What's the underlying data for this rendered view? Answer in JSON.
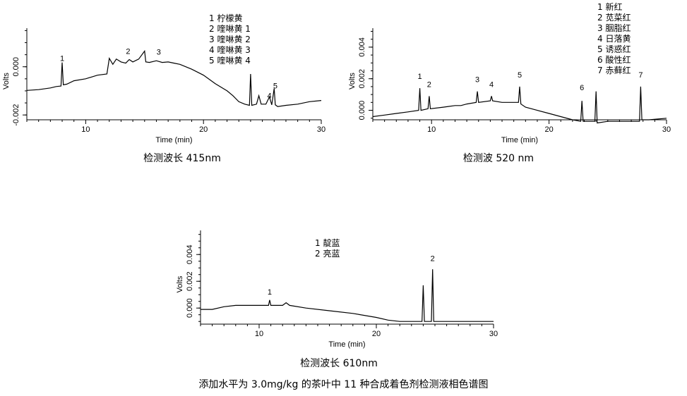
{
  "footer_caption": "添加水平为 3.0mg/kg 的茶叶中 11 种合成着色剂检测液相色谱图",
  "chart_data": [
    {
      "type": "line",
      "caption": "检测波长 415nm",
      "xlabel": "Time (min)",
      "ylabel": "Volts",
      "xlim": [
        5,
        30
      ],
      "ylim": [
        -0.0022,
        0.0016
      ],
      "xticks": [
        10,
        20,
        30
      ],
      "yticks": [
        -0.002,
        0.0
      ],
      "ytick_labels": [
        "-0.002",
        "0.000"
      ],
      "legend": [
        "1 柠檬黄",
        "2 喹啉黄 1",
        "3 喹啉黄 2",
        "4 喹啉黄 3",
        "5 喹啉黄 4"
      ],
      "peak_labels": [
        {
          "label": "1",
          "x": 8.0,
          "y": 0.00012
        },
        {
          "label": "2",
          "x": 13.6,
          "y": 0.00042
        },
        {
          "label": "3",
          "x": 16.2,
          "y": 0.00038
        },
        {
          "label": "4",
          "x": 25.6,
          "y": -0.00142
        },
        {
          "label": "5",
          "x": 26.1,
          "y": -0.00102
        }
      ],
      "series": [
        {
          "x": [
            5,
            6,
            7,
            7.5,
            7.9,
            8.0,
            8.1,
            8.4,
            9,
            10,
            11,
            11.8,
            12,
            12.3,
            12.6,
            13,
            13.4,
            13.7,
            14,
            14.5,
            15.0,
            15.1,
            15.4,
            16,
            16.5,
            17,
            17.5,
            18,
            19,
            20,
            21,
            22,
            22.5,
            23,
            23.5,
            23.9,
            24.0,
            24.1,
            24.5,
            24.7,
            24.9,
            25.3,
            25.6,
            25.8,
            26.0,
            26.1,
            26.3,
            27,
            28,
            29,
            30
          ],
          "y": [
            -0.00098,
            -0.00095,
            -0.00088,
            -0.00082,
            -0.0008,
            0.00018,
            -0.00075,
            -0.00072,
            -0.00058,
            -0.0005,
            -0.00035,
            -0.0003,
            0.00035,
            0.0001,
            0.00032,
            0.0002,
            0.00015,
            0.0003,
            0.0002,
            0.00032,
            0.00065,
            0.0002,
            0.00018,
            0.00025,
            0.00018,
            0.0002,
            0.00015,
            0.0001,
            -0.0001,
            -0.00035,
            -0.0007,
            -0.001,
            -0.0012,
            -0.00145,
            -0.00155,
            -0.0016,
            -0.0003,
            -0.0016,
            -0.00155,
            -0.0012,
            -0.00155,
            -0.00155,
            -0.00125,
            -0.00158,
            -0.0009,
            -0.00158,
            -0.00165,
            -0.0016,
            -0.00155,
            -0.00145,
            -0.0014
          ]
        }
      ]
    },
    {
      "type": "line",
      "caption": "检测波 520 nm",
      "xlabel": "Time (min)",
      "ylabel": "Volts",
      "xlim": [
        5,
        30
      ],
      "ylim": [
        -0.0006,
        0.0052
      ],
      "xticks": [
        10,
        20,
        30
      ],
      "yticks": [
        0.0,
        0.002,
        0.004
      ],
      "ytick_labels": [
        "0.000",
        "0.002",
        "0.004"
      ],
      "legend": [
        "1 新红",
        "2 苋菜红",
        "3 胭脂红",
        "4 日落黄",
        "5 诱惑红",
        "6 酸性红",
        "7 赤藓红"
      ],
      "peak_labels": [
        {
          "label": "1",
          "x": 9.0,
          "y": 0.0018
        },
        {
          "label": "2",
          "x": 9.8,
          "y": 0.0013
        },
        {
          "label": "3",
          "x": 13.9,
          "y": 0.0016
        },
        {
          "label": "4",
          "x": 15.1,
          "y": 0.0013
        },
        {
          "label": "5",
          "x": 17.5,
          "y": 0.0019
        },
        {
          "label": "6",
          "x": 22.8,
          "y": 0.0011
        },
        {
          "label": "7",
          "x": 27.8,
          "y": 0.0019
        }
      ],
      "series": [
        {
          "x": [
            5,
            6,
            7,
            8,
            8.9,
            9.0,
            9.1,
            9.7,
            9.8,
            9.9,
            11,
            12,
            12.5,
            13,
            13.8,
            13.9,
            14.0,
            15.0,
            15.1,
            15.2,
            16,
            17.4,
            17.5,
            17.6,
            18,
            19,
            20,
            21,
            22,
            22.7,
            22.8,
            22.9,
            23.5,
            23.9,
            24.0,
            24.1,
            25,
            26,
            27.7,
            27.8,
            27.9,
            28.5,
            30
          ],
          "y": [
            -0.0004,
            -0.0003,
            -0.0002,
            -0.0001,
            0.0,
            0.0014,
            0.0,
            0.0001,
            0.0009,
            0.0001,
            0.0002,
            0.0003,
            0.0003,
            0.0004,
            0.0005,
            0.0012,
            0.0005,
            0.0006,
            0.0009,
            0.0006,
            0.0005,
            0.0005,
            0.0015,
            0.0004,
            0.0002,
            0.0,
            -0.0002,
            -0.0004,
            -0.0006,
            -0.0007,
            0.0006,
            -0.0007,
            -0.0007,
            -0.0007,
            0.0012,
            -0.0008,
            -0.0007,
            -0.0007,
            -0.0007,
            0.0015,
            -0.0006,
            -0.0006,
            -0.0005
          ]
        }
      ]
    },
    {
      "type": "line",
      "caption": "检测波长 610nm",
      "xlabel": "Time (min)",
      "ylabel": "Volts",
      "xlim": [
        5,
        30
      ],
      "ylim": [
        -0.0012,
        0.0058
      ],
      "xticks": [
        10,
        20,
        30
      ],
      "yticks": [
        0.0,
        0.002,
        0.004
      ],
      "ytick_labels": [
        "0.000",
        "0.002",
        "0.004"
      ],
      "legend": [
        "1 靛蓝",
        "2 亮蓝"
      ],
      "peak_labels": [
        {
          "label": "1",
          "x": 10.9,
          "y": 0.0008
        },
        {
          "label": "2",
          "x": 24.8,
          "y": 0.0033
        }
      ],
      "series": [
        {
          "x": [
            5,
            6,
            7,
            8,
            10,
            10.8,
            10.9,
            11.0,
            12,
            12.3,
            12.6,
            14,
            16,
            18,
            20,
            21,
            22,
            23,
            23.9,
            24.0,
            24.1,
            24.7,
            24.8,
            24.9,
            25.5,
            26,
            27,
            30
          ],
          "y": [
            -0.0001,
            -0.0001,
            0.0001,
            0.0002,
            0.0002,
            0.0002,
            0.0006,
            0.0002,
            0.0002,
            0.0004,
            0.0002,
            0.0,
            -0.0002,
            -0.0004,
            -0.0007,
            -0.0009,
            -0.001,
            -0.001,
            -0.001,
            0.0017,
            -0.001,
            -0.001,
            0.0029,
            -0.001,
            -0.001,
            -0.001,
            -0.001,
            -0.001
          ]
        }
      ]
    }
  ]
}
